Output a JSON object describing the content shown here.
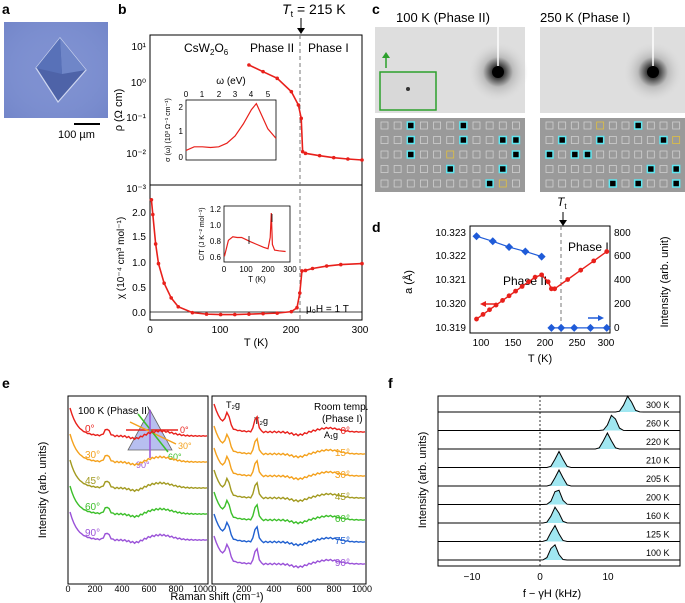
{
  "panels": {
    "a": {
      "letter": "a",
      "scale_bar": "100 µm"
    },
    "b": {
      "letter": "b",
      "tt_label": "T",
      "tt_sub": "t",
      "tt_value": " = 215 K",
      "material": "CsW",
      "mat_sub1": "2",
      "mat_o": "O",
      "mat_sub2": "6",
      "phase2": "Phase II",
      "phase1": "Phase I",
      "rho_label": "ρ (Ω cm)",
      "rho_ticks": [
        "10¹",
        "10⁰",
        "10⁻¹",
        "10⁻²",
        "10⁻³"
      ],
      "chi_label": "χ (10⁻⁴ cm³ mol⁻¹)",
      "chi_ticks": [
        "2.0",
        "1.5",
        "1.0",
        "0.5",
        "0.0"
      ],
      "x_ticks": [
        "0",
        "100",
        "200",
        "300"
      ],
      "x_label": "T (K)",
      "field_label": "μ₀H = 1 T",
      "inset1": {
        "top_label": "ω (eV)",
        "top_ticks": [
          "0",
          "1",
          "2",
          "3",
          "4",
          "5"
        ],
        "y_label": "σ (ω) (10³ Ω⁻¹ cm⁻¹)",
        "y_ticks": [
          "2",
          "1",
          "0"
        ]
      },
      "inset2": {
        "y_label": "C/T (J K⁻² mol⁻¹)",
        "y_ticks": [
          "1.2",
          "1.0",
          "0.8",
          "0.6"
        ],
        "x_ticks": [
          "0",
          "100",
          "200",
          "300"
        ],
        "x_label": "T (K)"
      }
    },
    "c": {
      "letter": "c",
      "left_title": "100 K (Phase II)",
      "right_title": "250 K (Phase I)"
    },
    "d": {
      "letter": "d",
      "tt_label": "T",
      "tt_sub": "t",
      "left_ylabel": "a (Å)",
      "left_ticks": [
        "10.323",
        "10.322",
        "10.321",
        "10.320",
        "10.319"
      ],
      "right_ylabel": "Intensity (arb. unit)",
      "right_ticks": [
        "800",
        "600",
        "400",
        "200",
        "0"
      ],
      "x_ticks": [
        "100",
        "150",
        "200",
        "250",
        "300"
      ],
      "x_label": "T (K)",
      "phase2": "Phase II",
      "phase1": "Phase I"
    },
    "e": {
      "letter": "e",
      "left_title": "100 K (Phase II)",
      "right_title_1": "Room temp.",
      "right_title_2": "(Phase I)",
      "y_label": "Intensity (arb. units)",
      "x_label": "Raman shift (cm⁻¹)",
      "x_ticks": [
        "0",
        "200",
        "400",
        "600",
        "800",
        "1000"
      ],
      "left_angles": [
        "0°",
        "30°",
        "45°",
        "60°",
        "90°"
      ],
      "right_angles": [
        "0°",
        "15°",
        "30°",
        "45°",
        "60°",
        "75°",
        "90°"
      ],
      "mode_labels": [
        "T₂g",
        "T₂g",
        "A₁g"
      ],
      "triangle_angles": [
        "0°",
        "30°",
        "60°",
        "90°"
      ]
    },
    "f": {
      "letter": "f",
      "y_label": "Intensity (arb. units)",
      "x_label": "f − γH (kHz)",
      "x_ticks": [
        "−10",
        "0",
        "10"
      ],
      "temps": [
        "300 K",
        "260 K",
        "220 K",
        "210 K",
        "205 K",
        "200 K",
        "160 K",
        "125 K",
        "100 K"
      ]
    }
  },
  "colors": {
    "red": "#e8201b",
    "orange": "#f4a11d",
    "olive": "#a29a20",
    "green": "#3cbf2a",
    "blue": "#2060d0",
    "purple": "#9a52d8",
    "cyan": "#8fe3ee",
    "diamond_blue": "#1f5bd8"
  },
  "chart_data": [
    {
      "type": "line",
      "title": "Resistivity",
      "xlabel": "T (K)",
      "ylabel": "ρ (Ω cm)",
      "xlim": [
        0,
        300
      ],
      "ylim_log10": [
        -3,
        1.5
      ],
      "x": [
        140,
        160,
        180,
        200,
        210,
        214,
        216,
        220,
        240,
        260,
        280,
        300
      ],
      "log10_y": [
        0.6,
        0.4,
        0.2,
        -0.2,
        -0.6,
        -1.0,
        -2.0,
        -2.05,
        -2.12,
        -2.18,
        -2.22,
        -2.25
      ]
    },
    {
      "type": "line",
      "title": "Magnetic susceptibility",
      "xlabel": "T (K)",
      "ylabel": "χ (10⁻⁴ cm³ mol⁻¹)",
      "xlim": [
        0,
        300
      ],
      "ylim": [
        -0.25,
        2.4
      ],
      "x": [
        2,
        4,
        8,
        12,
        20,
        30,
        40,
        60,
        80,
        100,
        120,
        140,
        160,
        180,
        200,
        208,
        212,
        215,
        220,
        230,
        250,
        270,
        300
      ],
      "y": [
        2.2,
        1.9,
        1.3,
        0.9,
        0.5,
        0.2,
        0.02,
        -0.1,
        -0.13,
        -0.14,
        -0.14,
        -0.13,
        -0.12,
        -0.11,
        -0.08,
        0.0,
        0.3,
        0.75,
        0.76,
        0.8,
        0.85,
        0.88,
        0.9
      ]
    },
    {
      "type": "line",
      "title": "Optical conductivity inset",
      "xlabel": "ω (eV)",
      "ylabel": "σ (ω)",
      "xlim": [
        0,
        5.5
      ],
      "ylim": [
        0,
        2.5
      ],
      "x": [
        0,
        0.5,
        1,
        1.5,
        2,
        2.5,
        3,
        3.5,
        4,
        4.3,
        4.6,
        5,
        5.5
      ],
      "y": [
        0.4,
        0.55,
        0.55,
        0.52,
        0.55,
        0.7,
        1.0,
        1.5,
        2.1,
        2.35,
        1.9,
        1.3,
        0.9
      ]
    },
    {
      "type": "line",
      "title": "Specific heat inset",
      "xlabel": "T (K)",
      "ylabel": "C/T",
      "xlim": [
        0,
        300
      ],
      "ylim": [
        0.55,
        1.35
      ],
      "x": [
        2,
        20,
        40,
        60,
        80,
        100,
        120,
        150,
        180,
        200,
        210,
        215,
        220,
        230,
        250,
        280
      ],
      "y": [
        0.63,
        0.86,
        0.91,
        0.9,
        0.9,
        0.87,
        0.84,
        0.8,
        0.76,
        0.74,
        0.9,
        1.25,
        0.8,
        0.72,
        0.71,
        0.7
      ]
    },
    {
      "type": "line",
      "title": "Lattice constant and superlattice intensity",
      "xlabel": "T (K)",
      "ylabel": "a (Å)",
      "xlim": [
        90,
        305
      ],
      "series": [
        {
          "name": "a (Å)",
          "x": [
            100,
            110,
            120,
            130,
            140,
            150,
            160,
            170,
            180,
            190,
            200,
            210,
            215,
            220,
            240,
            260,
            280,
            300
          ],
          "y": [
            10.3193,
            10.3195,
            10.3197,
            10.3199,
            10.3201,
            10.3203,
            10.3205,
            10.3207,
            10.3209,
            10.3211,
            10.3212,
            10.3209,
            10.3206,
            10.3206,
            10.321,
            10.3214,
            10.3218,
            10.3222
          ]
        },
        {
          "name": "Intensity (arb. unit)",
          "x": [
            100,
            125,
            150,
            175,
            200,
            215,
            230,
            250,
            275,
            300
          ],
          "y": [
            740,
            700,
            655,
            620,
            580,
            20,
            20,
            20,
            20,
            20
          ]
        }
      ]
    },
    {
      "type": "line",
      "title": "NMR spectra",
      "xlabel": "f − γH (kHz)",
      "ylabel": "Intensity (arb. units)",
      "xlim": [
        -15,
        13
      ],
      "series": [
        {
          "name": "300 K",
          "peak_kHz": 7.0
        },
        {
          "name": "260 K",
          "peak_kHz": 5.2
        },
        {
          "name": "220 K",
          "peak_kHz": 4.6
        },
        {
          "name": "210 K",
          "peak_kHz": -1.0
        },
        {
          "name": "205 K",
          "peak_kHz": -1.0
        },
        {
          "name": "200 K",
          "peak_kHz": -1.2
        },
        {
          "name": "160 K",
          "peak_kHz": -1.4
        },
        {
          "name": "125 K",
          "peak_kHz": -1.5
        },
        {
          "name": "100 K",
          "peak_kHz": -1.6
        }
      ]
    }
  ]
}
